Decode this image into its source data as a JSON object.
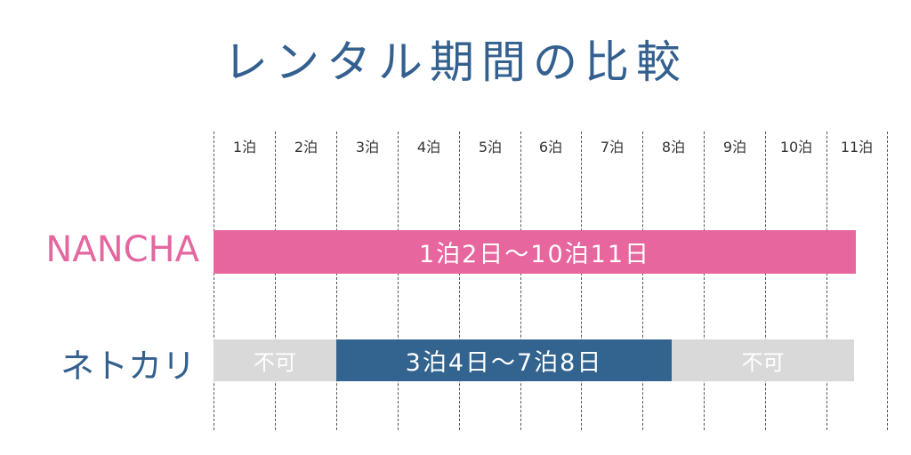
{
  "title": "レンタル期間の比較",
  "nights": [
    "1泊",
    "2泊",
    "3泊",
    "4泊",
    "5泊",
    "6泊",
    "7泊",
    "8泊",
    "9泊",
    "10泊",
    "11泊"
  ],
  "rows": {
    "nancha": {
      "label": "NANCHA",
      "bar_text": "1泊2日〜10泊11日"
    },
    "netokari": {
      "label": "ネトカリ",
      "unavailable_left": "不可",
      "bar_text": "3泊4日〜7泊8日",
      "unavailable_right": "不可"
    }
  },
  "colors": {
    "title": "#33608f",
    "nancha": "#e7669e",
    "netokari": "#33638f",
    "unavailable": "#d9d9d9"
  }
}
